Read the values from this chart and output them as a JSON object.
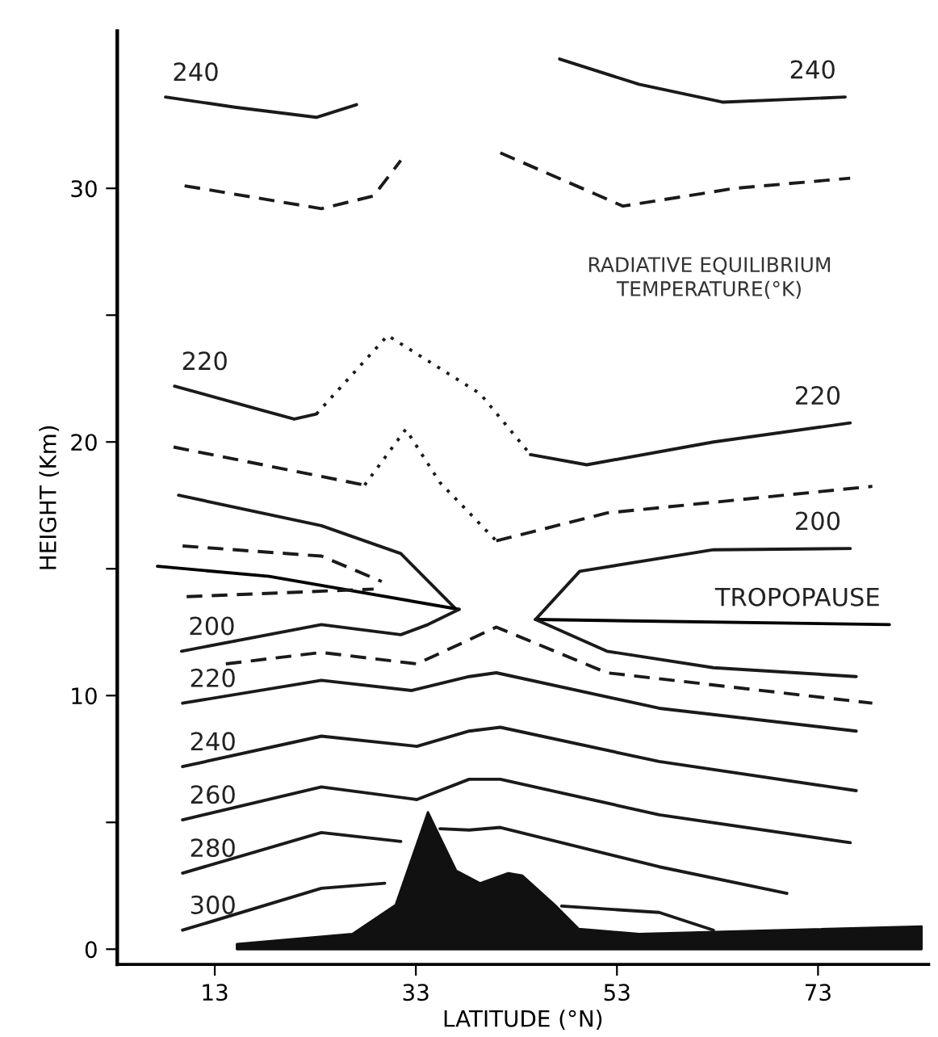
{
  "chart_data": {
    "type": "line",
    "title": "RADIATIVE EQUILIBRIUM\nTEMPERATURE(°K)",
    "xlabel": "LATITUDE (°N)",
    "ylabel": "HEIGHT (Km)",
    "xlim": [
      3.3,
      84
    ],
    "ylim": [
      -0.6,
      36.2
    ],
    "xticks": [
      13,
      33,
      53,
      73
    ],
    "yticks": [
      0,
      {
        "value": 5,
        "label": null
      },
      10,
      {
        "value": 15,
        "label": null
      },
      20,
      {
        "value": 25,
        "label": null
      },
      30
    ],
    "grid": false,
    "marker": "none",
    "series": [
      {
        "name": "240",
        "line_style": "solid",
        "color": "#1a1a1a",
        "x": [
          8.1,
          15,
          23.1,
          27.1
        ],
        "values": [
          33.6,
          33.2,
          32.8,
          33.3
        ]
      },
      {
        "line_style": "dashed",
        "color": "#1a1a1a",
        "x": [
          10,
          23.6,
          28.8,
          31.5
        ],
        "values": [
          30.1,
          29.2,
          29.7,
          31.1
        ]
      },
      {
        "name": "240",
        "line_style": "solid",
        "color": "#1a1a1a",
        "x": [
          47.3,
          55.2,
          63.5,
          75.7
        ],
        "values": [
          35.1,
          34.1,
          33.4,
          33.6
        ]
      },
      {
        "line_style": "dashed",
        "color": "#1a1a1a",
        "x": [
          41.4,
          53.6,
          64.7,
          76.2
        ],
        "values": [
          31.4,
          29.3,
          30,
          30.4
        ]
      },
      {
        "name": "220",
        "line_style": "solid",
        "color": "#1a1a1a",
        "x": [
          9,
          20.9,
          23.1
        ],
        "values": [
          22.2,
          20.9,
          21.1
        ]
      },
      {
        "line_style": "dotted",
        "color": "#1a1a1a",
        "x": [
          23.1,
          30.2,
          39.4,
          44.4
        ],
        "values": [
          21.1,
          24.2,
          21.9,
          19.5
        ]
      },
      {
        "name": "220",
        "line_style": "solid",
        "color": "#1a1a1a",
        "x": [
          44.4,
          50,
          62.6,
          76.2
        ],
        "values": [
          19.5,
          19.1,
          20,
          20.75
        ]
      },
      {
        "line_style": "dashed",
        "color": "#1a1a1a",
        "x": [
          8.9,
          27.9
        ],
        "values": [
          19.8,
          18.3
        ]
      },
      {
        "line_style": "dotted",
        "color": "#1a1a1a",
        "x": [
          27.9,
          32,
          35.4,
          41
        ],
        "values": [
          18.3,
          20.5,
          18.4,
          16.1
        ]
      },
      {
        "line_style": "dashed",
        "color": "#1a1a1a",
        "x": [
          41,
          52,
          78.4
        ],
        "values": [
          16.1,
          17.2,
          18.25
        ]
      },
      {
        "line_style": "solid",
        "color": "#1a1a1a",
        "x": [
          9.4,
          23.6,
          31.5,
          37
        ],
        "values": [
          17.9,
          16.7,
          15.6,
          13.4
        ]
      },
      {
        "line_style": "dashed",
        "color": "#1a1a1a",
        "x": [
          9.8,
          23.6,
          29.6
        ],
        "values": [
          15.9,
          15.5,
          14.5
        ]
      },
      {
        "line_style": "solid",
        "color": "#000000",
        "x": [
          7.3,
          18.4,
          37.3
        ],
        "values": [
          15.1,
          14.7,
          13.4
        ]
      },
      {
        "name": "TROPOPAUSE",
        "line_style": "solid",
        "color": "#000000",
        "x": [
          44.9,
          80.1
        ],
        "values": [
          13,
          12.8
        ]
      },
      {
        "line_style": "dashed",
        "color": "#1a1a1a",
        "x": [
          10.2,
          28.8
        ],
        "values": [
          13.9,
          14.2
        ]
      },
      {
        "name": "200",
        "line_style": "solid",
        "color": "#1a1a1a",
        "x": [
          9.7,
          23.6,
          31.5,
          34.2,
          37.3
        ],
        "values": [
          11.75,
          12.8,
          12.4,
          12.8,
          13.4
        ]
      },
      {
        "name": "200",
        "line_style": "solid",
        "color": "#1a1a1a",
        "x": [
          44.9,
          49.3,
          62.6,
          76.2
        ],
        "values": [
          13,
          14.9,
          15.75,
          15.8
        ]
      },
      {
        "line_style": "solid",
        "color": "#1a1a1a",
        "x": [
          44.9,
          52,
          62.6,
          76.8
        ],
        "values": [
          13,
          11.75,
          11.1,
          10.75
        ]
      },
      {
        "line_style": "dashed",
        "color": "#1a1a1a",
        "x": [
          14.1,
          23.6,
          33.1,
          38.3,
          41,
          52,
          78.4
        ],
        "values": [
          11.25,
          11.7,
          11.25,
          12.2,
          12.7,
          10.9,
          9.7
        ]
      },
      {
        "name": "220",
        "line_style": "solid",
        "color": "#1a1a1a",
        "x": [
          9.8,
          23.6,
          32.6,
          38.3,
          41,
          57.2,
          76.8
        ],
        "values": [
          9.7,
          10.6,
          10.2,
          10.75,
          10.9,
          9.5,
          8.6
        ]
      },
      {
        "name": "240",
        "line_style": "solid",
        "color": "#1a1a1a",
        "x": [
          9.8,
          23.6,
          33.1,
          38.3,
          41.4,
          57.2,
          76.8
        ],
        "values": [
          7.2,
          8.4,
          8,
          8.6,
          8.75,
          7.4,
          6.25
        ]
      },
      {
        "name": "260",
        "line_style": "solid",
        "color": "#1a1a1a",
        "x": [
          9.8,
          23.6,
          33.1,
          38.3,
          41.4,
          57.2,
          76.2
        ],
        "values": [
          5.1,
          6.4,
          5.9,
          6.7,
          6.7,
          5.3,
          4.2
        ]
      },
      {
        "name": "280",
        "line_style": "solid",
        "color": "#1a1a1a",
        "x": [
          9.8,
          23.6,
          31.5,
          33.5,
          35.4,
          38.3,
          41.4,
          57.2,
          69.9
        ],
        "values": [
          3,
          4.6,
          4.25,
          null,
          4.75,
          4.7,
          4.8,
          3.25,
          2.2
        ]
      },
      {
        "name": "300",
        "line_style": "solid",
        "color": "#1a1a1a",
        "x": [
          9.8,
          23.6,
          29.9,
          38,
          47.5,
          57.2,
          62.6
        ],
        "values": [
          0.75,
          2.4,
          2.6,
          null,
          1.7,
          1.45,
          0.75
        ]
      },
      {
        "type": "area",
        "color": "#111111",
        "x": [
          15.2,
          26.7,
          31,
          34.2,
          37,
          39.4,
          42.2,
          43.6,
          46.8,
          49.2,
          55.2,
          83.3
        ],
        "values": [
          0.2,
          0.6,
          1.75,
          5.4,
          3.1,
          2.6,
          3,
          2.9,
          1.75,
          0.8,
          0.6,
          0.9
        ]
      }
    ]
  }
}
